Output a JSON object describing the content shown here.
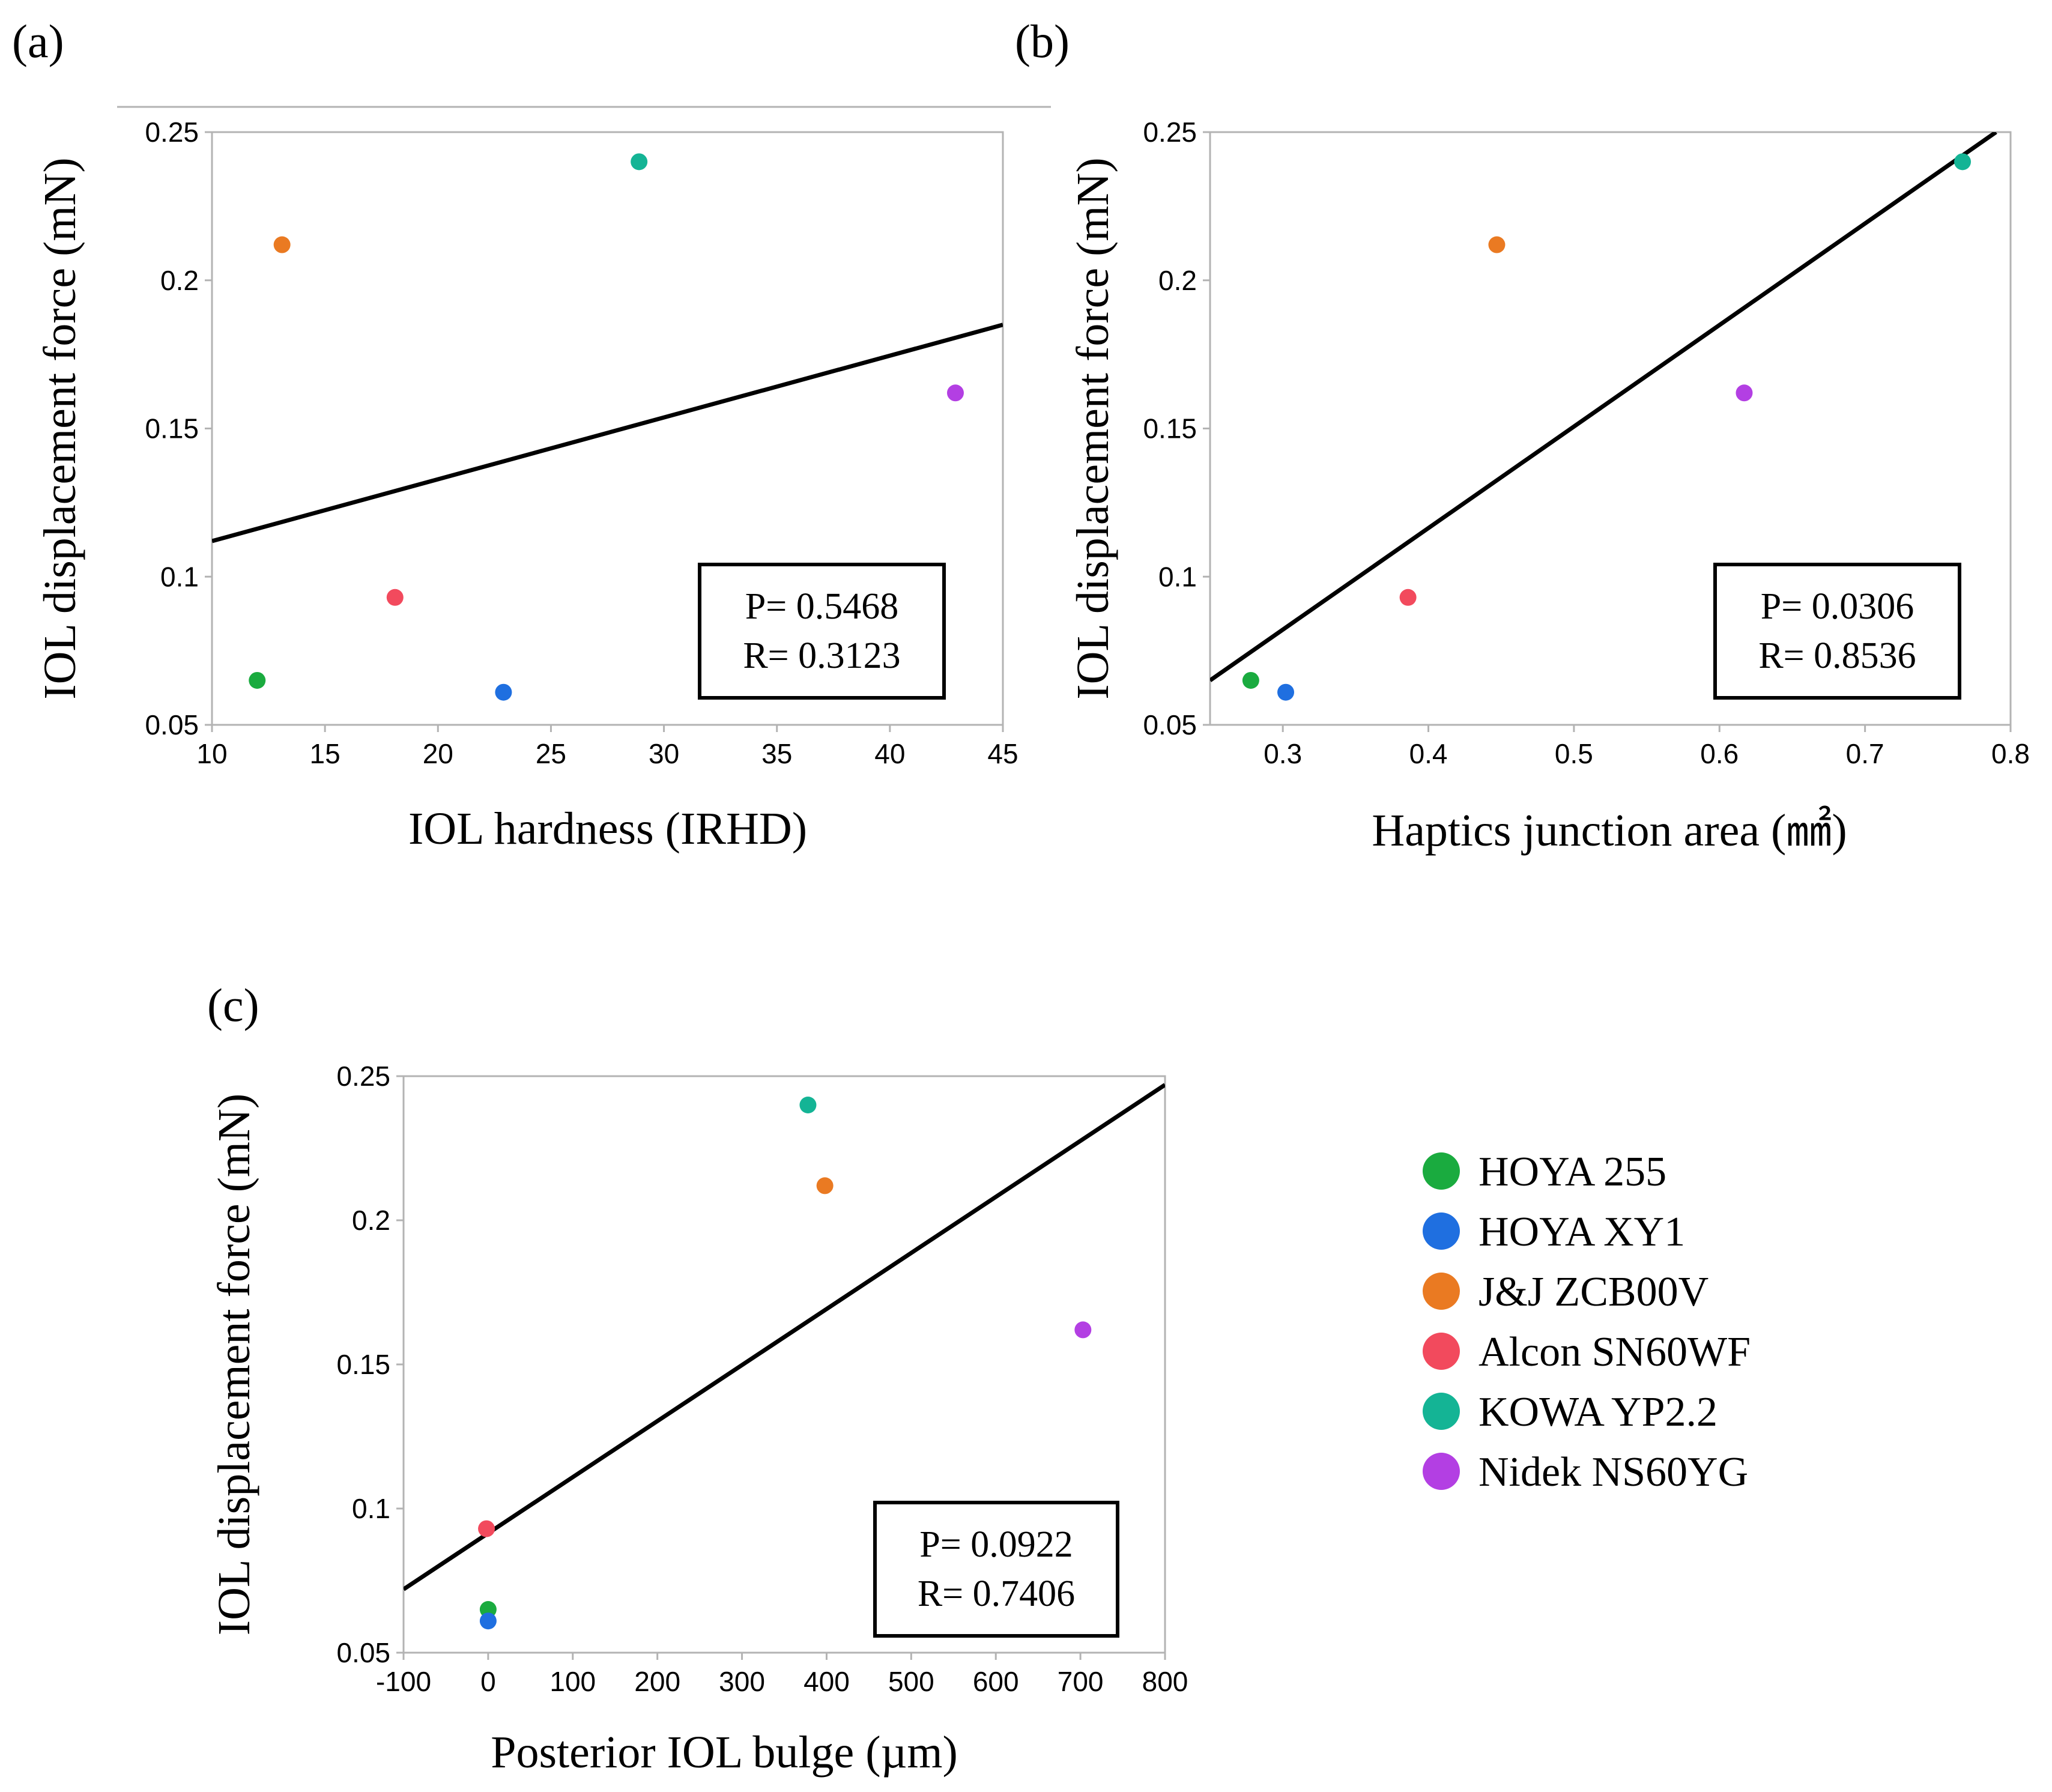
{
  "colors": {
    "HOYA 255": "#1aab3f",
    "HOYA XY1": "#1f6fe0",
    "J&J ZCB00V": "#ea7a22",
    "Alcon SN60WF": "#f24a5d",
    "KOWA YP2.2": "#14b495",
    "Nidek NS60YG": "#b33fe3",
    "frame": "#b3b3b3",
    "fit_line": "#000000"
  },
  "legend": {
    "items": [
      {
        "label": "HOYA 255",
        "color": "#1aab3f"
      },
      {
        "label": "HOYA XY1",
        "color": "#1f6fe0"
      },
      {
        "label": "J&J ZCB00V",
        "color": "#ea7a22"
      },
      {
        "label": "Alcon SN60WF",
        "color": "#f24a5d"
      },
      {
        "label": "KOWA YP2.2",
        "color": "#14b495"
      },
      {
        "label": "Nidek NS60YG",
        "color": "#b33fe3"
      }
    ]
  },
  "chart_data": [
    {
      "id": "a",
      "panel_label": "(a)",
      "type": "scatter",
      "xlabel": "IOL hardness (IRHD)",
      "ylabel": "IOL displacement force (mN)",
      "xlim": [
        10,
        45
      ],
      "ylim": [
        0.05,
        0.25
      ],
      "xticks": [
        10,
        15,
        20,
        25,
        30,
        35,
        40,
        45
      ],
      "xtick_labels": [
        "10",
        "15",
        "20",
        "25",
        "30",
        "35",
        "40",
        "45"
      ],
      "yticks": [
        0.05,
        0.1,
        0.15,
        0.2,
        0.25
      ],
      "ytick_labels": [
        "0.05",
        "0.1",
        "0.15",
        "0.2",
        "0.25"
      ],
      "points": [
        {
          "name": "HOYA 255",
          "x": 12,
          "y": 0.065
        },
        {
          "name": "HOYA XY1",
          "x": 22.9,
          "y": 0.061
        },
        {
          "name": "J&J ZCB00V",
          "x": 13.1,
          "y": 0.212
        },
        {
          "name": "Alcon SN60WF",
          "x": 18.1,
          "y": 0.093
        },
        {
          "name": "KOWA YP2.2",
          "x": 28.9,
          "y": 0.24
        },
        {
          "name": "Nidek NS60YG",
          "x": 42.9,
          "y": 0.162
        }
      ],
      "fit_line": {
        "x": [
          10,
          45
        ],
        "y": [
          0.112,
          0.185
        ]
      },
      "stats": {
        "p": "P= 0.5468",
        "r": "R= 0.3123"
      }
    },
    {
      "id": "b",
      "panel_label": "(b)",
      "type": "scatter",
      "xlabel": "Haptics junction area (㎟)",
      "ylabel": "IOL displacement force (mN)",
      "xlim": [
        0.25,
        0.8
      ],
      "ylim": [
        0.05,
        0.25
      ],
      "xticks": [
        0.3,
        0.4,
        0.5,
        0.6,
        0.7,
        0.8
      ],
      "xtick_labels": [
        "0.3",
        "0.4",
        "0.5",
        "0.6",
        "0.7",
        "0.8"
      ],
      "yticks": [
        0.05,
        0.1,
        0.15,
        0.2,
        0.25
      ],
      "ytick_labels": [
        "0.05",
        "0.1",
        "0.15",
        "0.2",
        "0.25"
      ],
      "points": [
        {
          "name": "HOYA 255",
          "x": 0.278,
          "y": 0.065
        },
        {
          "name": "HOYA XY1",
          "x": 0.302,
          "y": 0.061
        },
        {
          "name": "J&J ZCB00V",
          "x": 0.447,
          "y": 0.212
        },
        {
          "name": "Alcon SN60WF",
          "x": 0.386,
          "y": 0.093
        },
        {
          "name": "KOWA YP2.2",
          "x": 0.767,
          "y": 0.24
        },
        {
          "name": "Nidek NS60YG",
          "x": 0.617,
          "y": 0.162
        }
      ],
      "fit_line": {
        "x": [
          0.25,
          0.79
        ],
        "y": [
          0.065,
          0.25
        ]
      },
      "stats": {
        "p": "P= 0.0306",
        "r": "R= 0.8536"
      }
    },
    {
      "id": "c",
      "panel_label": "(c)",
      "type": "scatter",
      "xlabel": "Posterior IOL bulge (µm)",
      "ylabel": "IOL displacement force    (mN)",
      "xlim": [
        -100,
        800
      ],
      "ylim": [
        0.05,
        0.25
      ],
      "xticks": [
        -100,
        0,
        100,
        200,
        300,
        400,
        500,
        600,
        700,
        800
      ],
      "xtick_labels": [
        "-100",
        "0",
        "100",
        "200",
        "300",
        "400",
        "500",
        "600",
        "700",
        "800"
      ],
      "yticks": [
        0.05,
        0.1,
        0.15,
        0.2,
        0.25
      ],
      "ytick_labels": [
        "0.05",
        "0.1",
        "0.15",
        "0.2",
        "0.25"
      ],
      "points": [
        {
          "name": "HOYA 255",
          "x": 0,
          "y": 0.065
        },
        {
          "name": "HOYA XY1",
          "x": 0,
          "y": 0.061
        },
        {
          "name": "J&J ZCB00V",
          "x": 398,
          "y": 0.212
        },
        {
          "name": "Alcon SN60WF",
          "x": -2,
          "y": 0.093
        },
        {
          "name": "KOWA YP2.2",
          "x": 378,
          "y": 0.24
        },
        {
          "name": "Nidek NS60YG",
          "x": 703,
          "y": 0.162
        }
      ],
      "fit_line": {
        "x": [
          -100,
          800
        ],
        "y": [
          0.072,
          0.247
        ]
      },
      "stats": {
        "p": "P= 0.0922",
        "r": "R= 0.7406"
      }
    }
  ]
}
